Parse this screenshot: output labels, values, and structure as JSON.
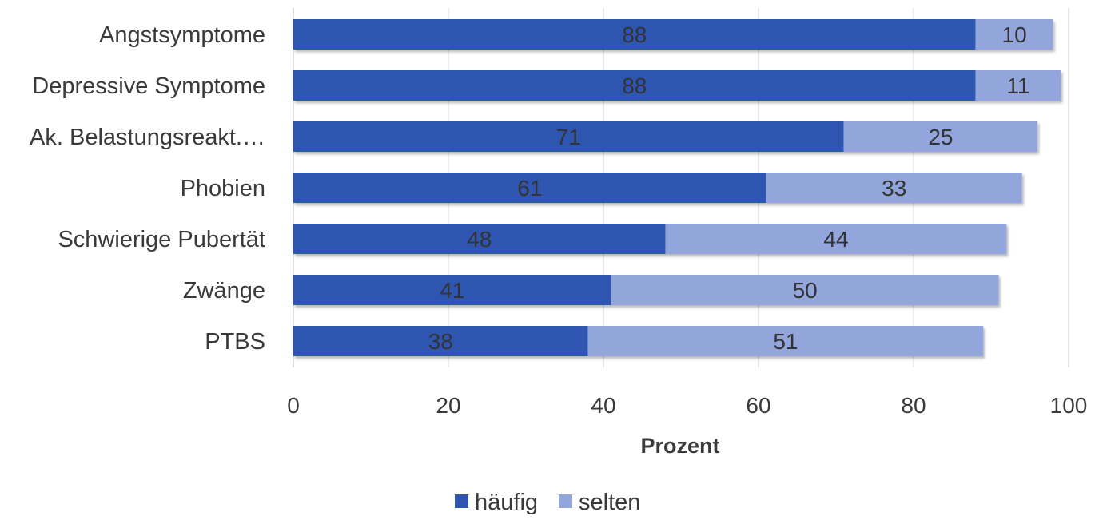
{
  "chart_data": {
    "type": "bar",
    "orientation": "horizontal",
    "stacked": true,
    "categories": [
      "Angstsymptome",
      "Depressive Symptome",
      "Ak. Belastungsreakt.…",
      "Phobien",
      "Schwierige Pubertät",
      "Zwänge",
      "PTBS"
    ],
    "series": [
      {
        "name": "häufig",
        "color": "#2E56B0",
        "values": [
          88,
          88,
          71,
          61,
          48,
          41,
          38
        ]
      },
      {
        "name": "selten",
        "color": "#93A6DC",
        "values": [
          10,
          11,
          25,
          33,
          44,
          50,
          51
        ]
      }
    ],
    "xlabel": "Prozent",
    "xlim": [
      0,
      100
    ],
    "xticks": [
      0,
      20,
      40,
      60,
      80,
      100
    ],
    "grid": "vertical",
    "legend_position": "bottom",
    "data_labels": true
  }
}
